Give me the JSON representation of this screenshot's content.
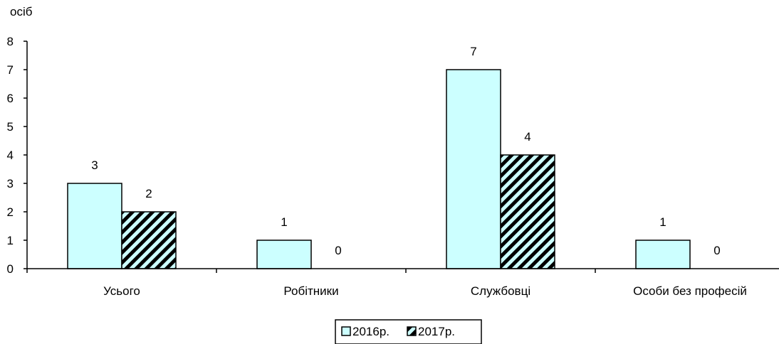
{
  "chart_data": {
    "type": "bar",
    "ylabel": "осіб",
    "ylim": [
      0,
      8
    ],
    "yticks": [
      0,
      1,
      2,
      3,
      4,
      5,
      6,
      7,
      8
    ],
    "grid": false,
    "legend_position": "bottom-center",
    "categories": [
      "Усього",
      "Робітники",
      "Службовці",
      "Особи без професій"
    ],
    "series": [
      {
        "name": "2016р.",
        "values": [
          3,
          1,
          7,
          1
        ],
        "color": "#ccffff",
        "pattern": "solid"
      },
      {
        "name": "2017р.",
        "values": [
          2,
          0,
          4,
          0
        ],
        "color": "#ccffff",
        "pattern": "diagonal-stripes",
        "stripe_color": "#000000"
      }
    ],
    "data_labels": true
  }
}
